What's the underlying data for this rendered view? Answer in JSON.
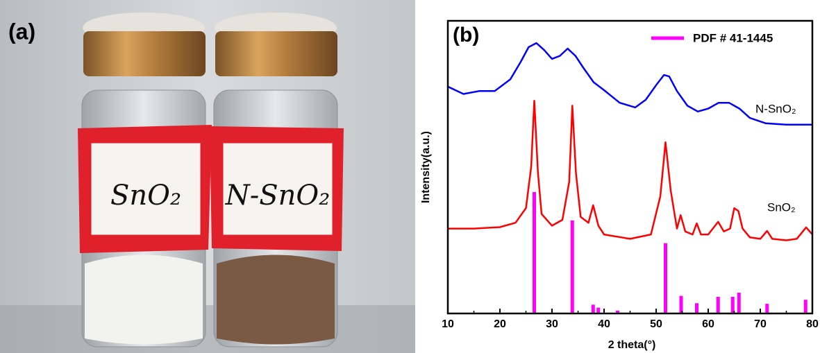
{
  "panel_a": {
    "label": "(a)",
    "vials": [
      "SnO₂",
      "N-SnO₂"
    ]
  },
  "chart_data": {
    "type": "line",
    "title": "(b)",
    "xlabel": "2 theta(°)",
    "ylabel": "Intensity(a.u.)",
    "xlim": [
      10,
      80
    ],
    "xticks": [
      10,
      20,
      30,
      40,
      50,
      60,
      70,
      80
    ],
    "ylim": [
      0,
      100
    ],
    "legend": "upper right",
    "series": [
      {
        "name": "N-SnO₂",
        "color": "#0000ff",
        "x": [
          10,
          13,
          16,
          19,
          22,
          24,
          25.5,
          27,
          28.5,
          30,
          31.5,
          33,
          34.5,
          36,
          38,
          40,
          43,
          46,
          48,
          50,
          51.5,
          52.5,
          54,
          56,
          58,
          60,
          62,
          64,
          66,
          68,
          71,
          75,
          80
        ],
        "values": [
          77.5,
          75,
          76,
          76,
          80,
          86,
          91,
          92.4,
          90,
          87,
          88,
          90.5,
          88,
          84,
          79,
          76.3,
          72,
          70.4,
          73,
          78,
          81.5,
          81,
          76,
          71,
          69,
          70,
          72,
          72,
          70,
          66.8,
          65,
          64.5,
          64.5
        ]
      },
      {
        "name": "SnO₂",
        "color": "#ff0000",
        "x": [
          10,
          15,
          20,
          23,
          25,
          26,
          26.6,
          27.3,
          28,
          30,
          32,
          33.3,
          33.9,
          34.6,
          35.5,
          37,
          37.9,
          38.9,
          40,
          45,
          49,
          50.8,
          51.8,
          52.8,
          54,
          54.7,
          55.6,
          57,
          57.8,
          58.6,
          60,
          61.9,
          63,
          64.2,
          65,
          65.8,
          66.6,
          68,
          70,
          71.3,
          72.3,
          75,
          77,
          78.8,
          80
        ],
        "values": [
          29,
          29,
          29.5,
          31,
          36,
          50,
          72.7,
          48,
          34,
          30,
          32,
          45,
          71,
          48,
          33,
          31,
          37,
          30,
          27,
          25.5,
          27,
          40,
          58.5,
          42,
          29,
          33.6,
          28,
          27,
          30.8,
          27,
          27,
          31.3,
          28,
          29,
          36,
          35,
          29,
          26,
          25.5,
          28.2,
          25.5,
          25,
          25.5,
          29.4,
          27
        ]
      }
    ],
    "reference": {
      "name": "PDF # 41-1445",
      "color": "#ff00ff",
      "x": [
        26.6,
        33.9,
        37.9,
        38.9,
        42.6,
        51.8,
        54.8,
        57.8,
        61.9,
        64.7,
        65.9,
        71.3,
        78.7
      ],
      "values": [
        41.5,
        31.8,
        3,
        2,
        1,
        24,
        6,
        3.5,
        5.7,
        5.7,
        7.1,
        3.3,
        4.7
      ]
    }
  }
}
